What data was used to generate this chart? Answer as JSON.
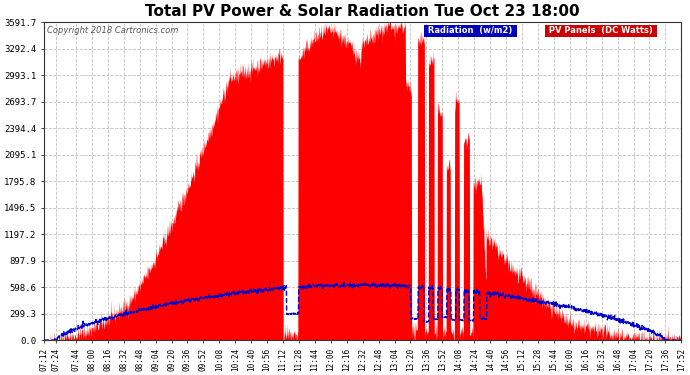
{
  "title": "Total PV Power & Solar Radiation Tue Oct 23 18:00",
  "copyright": "Copyright 2018 Cartronics.com",
  "legend_radiation": "Radiation  (w/m2)",
  "legend_pv": "PV Panels  (DC Watts)",
  "y_ticks": [
    0.0,
    299.3,
    598.6,
    897.9,
    1197.2,
    1496.5,
    1795.8,
    2095.1,
    2394.4,
    2693.7,
    2993.1,
    3292.4,
    3591.7
  ],
  "ylim": [
    0,
    3591.7
  ],
  "background_color": "#ffffff",
  "plot_bg_color": "#ffffff",
  "grid_color": "#b0b0b0",
  "pv_color": "#ff0000",
  "radiation_color": "#0000cc",
  "title_fontsize": 11,
  "figsize": [
    6.9,
    3.75
  ],
  "dpi": 100,
  "x_tick_labels": [
    "07:12",
    "07:24",
    "07:44",
    "08:00",
    "08:16",
    "08:32",
    "08:48",
    "09:04",
    "09:20",
    "09:36",
    "09:52",
    "10:08",
    "10:24",
    "10:40",
    "10:56",
    "11:12",
    "11:28",
    "11:44",
    "12:00",
    "12:16",
    "12:32",
    "12:48",
    "13:04",
    "13:20",
    "13:36",
    "13:52",
    "14:08",
    "14:24",
    "14:40",
    "14:56",
    "15:12",
    "15:28",
    "15:44",
    "16:00",
    "16:16",
    "16:32",
    "16:48",
    "17:04",
    "17:20",
    "17:36",
    "17:52"
  ]
}
